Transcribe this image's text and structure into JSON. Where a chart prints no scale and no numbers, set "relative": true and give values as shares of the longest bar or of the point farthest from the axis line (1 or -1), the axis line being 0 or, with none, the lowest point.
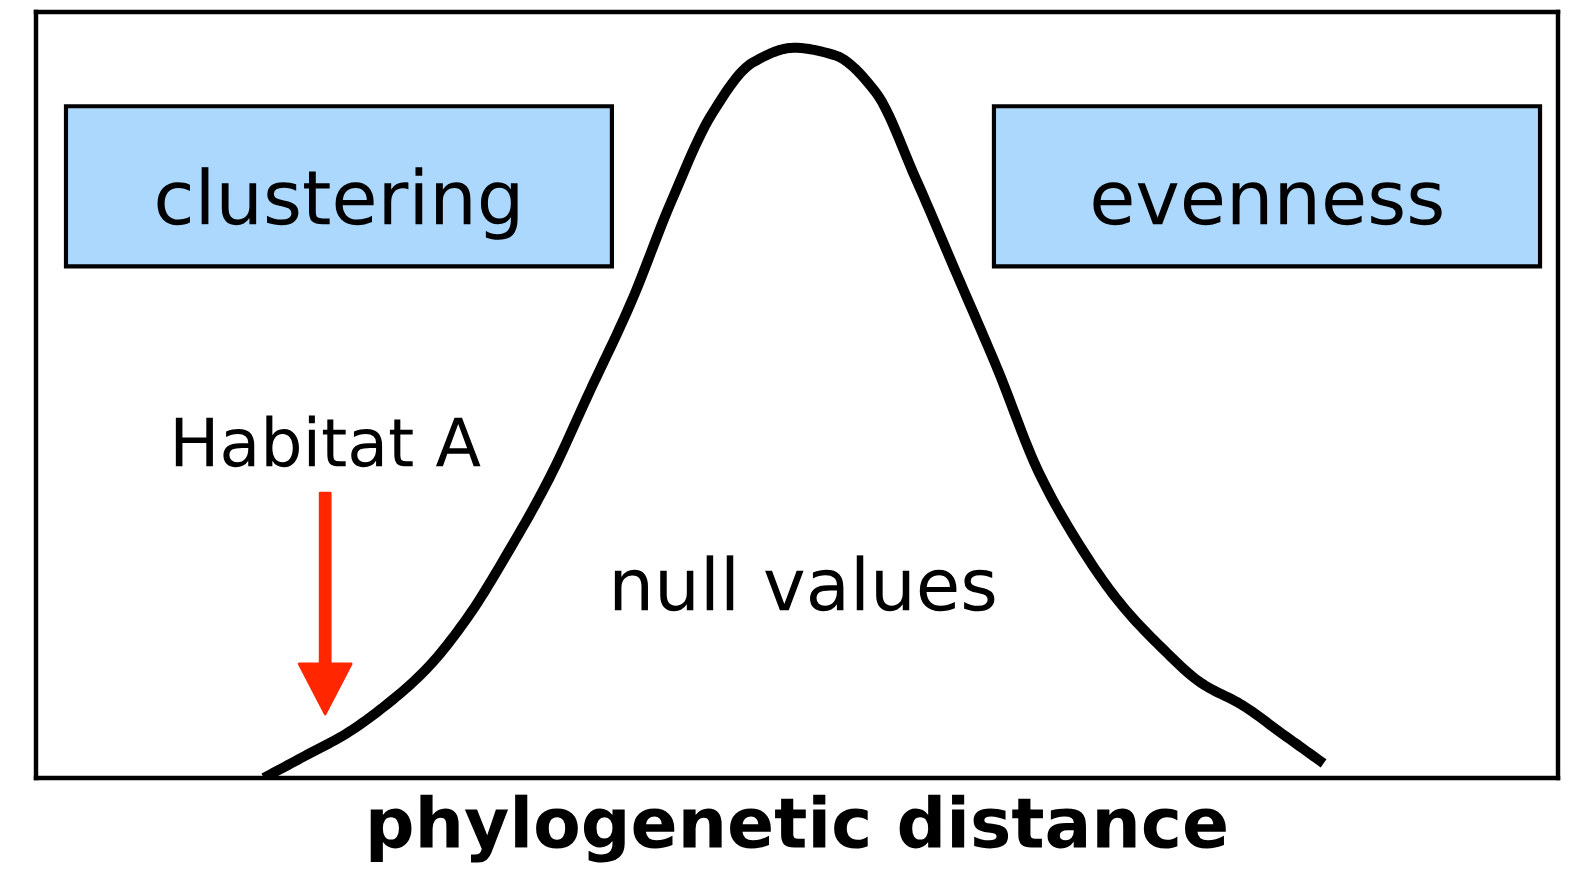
{
  "chart_data": {
    "type": "line",
    "relative": true,
    "xlabel": "phylogenetic distance",
    "categories": [
      null,
      null,
      null,
      null,
      null,
      null,
      null,
      null,
      null,
      null,
      null,
      null,
      null,
      null,
      null,
      null,
      null,
      null,
      null,
      null,
      null,
      null,
      null,
      null,
      null,
      null,
      null
    ],
    "series": [
      {
        "color": "#000000",
        "values": [
          0,
          0.03,
          0.06,
          0.1,
          0.15,
          0.22,
          0.31,
          0.41,
          0.53,
          0.65,
          0.79,
          0.91,
          0.98,
          1.0,
          0.99,
          0.94,
          0.82,
          0.69,
          0.56,
          0.42,
          0.32,
          0.24,
          0.18,
          0.13,
          0.1,
          0.06,
          0.02
        ]
      }
    ],
    "annotations": [
      "clustering",
      "evenness",
      "Habitat A",
      "null values"
    ]
  }
}
